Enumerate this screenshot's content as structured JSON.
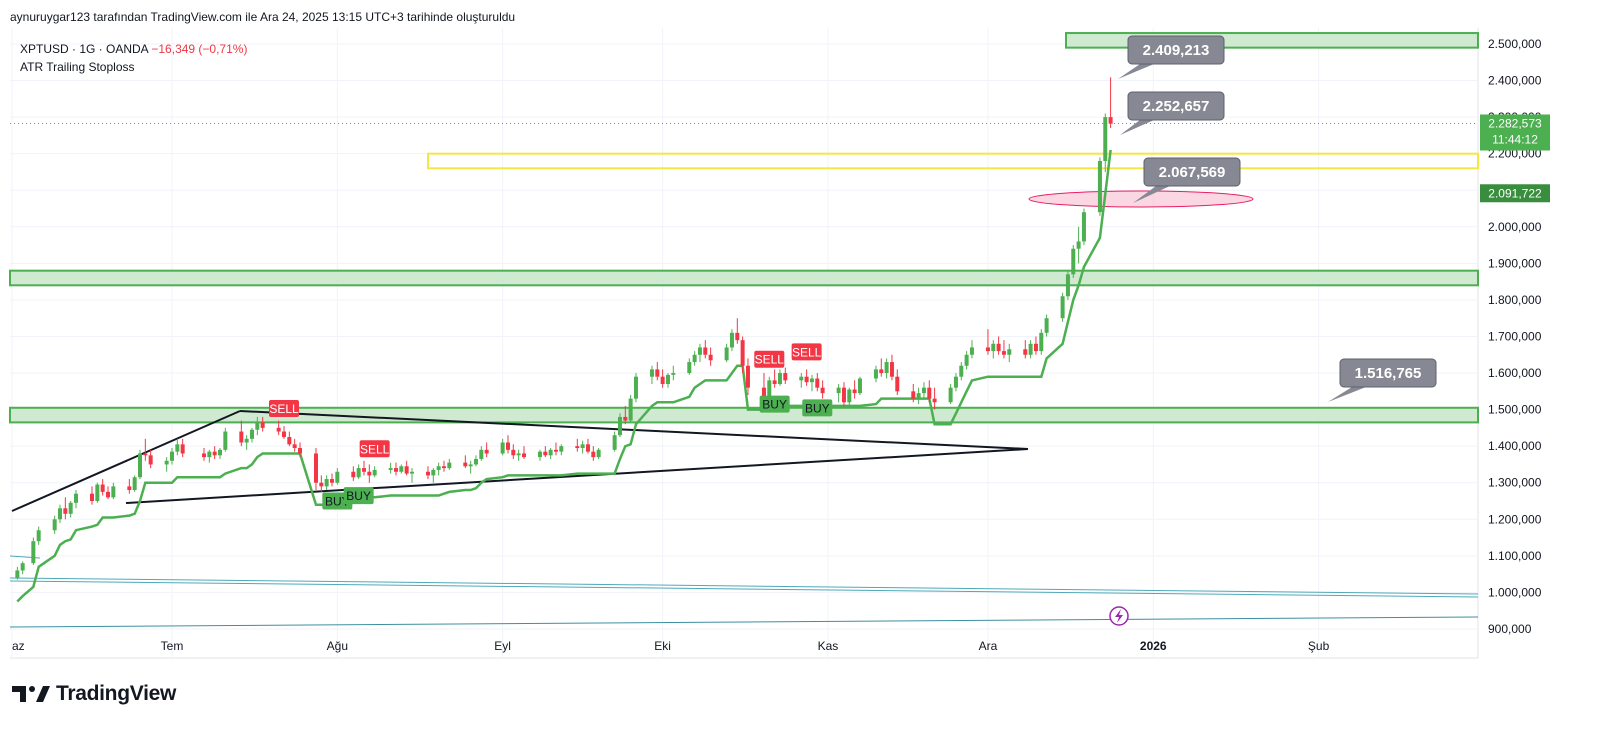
{
  "header": {
    "created_by": "aynuruygar123 tarafından TradingView.com ile Ara 24, 2025 13:15 UTC+3 tarihinde oluşturuldu"
  },
  "legend": {
    "symbol": "XPTUSD · 1G · OANDA",
    "change": "−16,349 (−0,71%)",
    "indicator": "ATR Trailing Stoploss"
  },
  "colors": {
    "up": "#4caf50",
    "down": "#f23645",
    "zone_fill": "#c8e6c9",
    "zone_stroke": "#4caf50",
    "yellow": "#f5e642",
    "callout": "#868993",
    "trend": "#131722",
    "atr": "#4caf50"
  },
  "chart_data": {
    "type": "candlestick",
    "y_ticks": [
      "2.500,000",
      "2.400,000",
      "2.300,000",
      "2.200,000",
      "2.100,000",
      "2.000,000",
      "1.900,000",
      "1.800,000",
      "1.700,000",
      "1.600,000",
      "1.500,000",
      "1.400,000",
      "1.300,000",
      "1.200,000",
      "1.100,000",
      "1.000,000",
      "900,000"
    ],
    "y_tick_values": [
      2500,
      2400,
      2300,
      2200,
      2100,
      2000,
      1900,
      1800,
      1700,
      1600,
      1500,
      1400,
      1300,
      1200,
      1100,
      1000,
      900
    ],
    "x_ticks": [
      "az",
      "Tem",
      "Ağu",
      "Eyl",
      "Eki",
      "Kas",
      "Ara",
      "2026",
      "Şub"
    ],
    "last_price": {
      "value": 2282.573,
      "label": "2.282,573",
      "countdown": "11:44:12"
    },
    "atr_value": {
      "value": 2091.722,
      "label": "2.091,722"
    },
    "callouts": [
      {
        "label": "2.409,213",
        "value": 2409.213
      },
      {
        "label": "2.252,657",
        "value": 2252.657
      },
      {
        "label": "2.067,569",
        "value": 2067.569
      },
      {
        "label": "1.516,765",
        "value": 1516.765
      }
    ],
    "zones": [
      {
        "low": 2490,
        "high": 2530,
        "color": "green"
      },
      {
        "low": 2160,
        "high": 2200,
        "color": "yellow"
      },
      {
        "low": 1840,
        "high": 1880,
        "color": "green"
      },
      {
        "low": 1465,
        "high": 1505,
        "color": "green"
      }
    ],
    "signals": [
      {
        "label": "SELL",
        "type": "sell",
        "date": "2025-07-22"
      },
      {
        "label": "SELL",
        "type": "sell",
        "date": "2025-08-08"
      },
      {
        "label": "BUY",
        "type": "buy",
        "date": "2025-08-01"
      },
      {
        "label": "BUY",
        "type": "buy",
        "date": "2025-08-05"
      },
      {
        "label": "SELL",
        "type": "sell",
        "date": "2025-10-21"
      },
      {
        "label": "SELL",
        "type": "sell",
        "date": "2025-10-28"
      },
      {
        "label": "BUY",
        "type": "buy",
        "date": "2025-10-22"
      },
      {
        "label": "BUY",
        "type": "buy",
        "date": "2025-10-30"
      }
    ],
    "candles": [
      [
        "2025-06-02",
        1040,
        1070,
        1035,
        1060
      ],
      [
        "2025-06-03",
        1060,
        1085,
        1050,
        1080
      ],
      [
        "2025-06-05",
        1080,
        1150,
        1075,
        1140
      ],
      [
        "2025-06-06",
        1140,
        1180,
        1130,
        1170
      ],
      [
        "2025-06-09",
        1170,
        1210,
        1160,
        1200
      ],
      [
        "2025-06-10",
        1200,
        1240,
        1190,
        1230
      ],
      [
        "2025-06-11",
        1230,
        1260,
        1200,
        1215
      ],
      [
        "2025-06-12",
        1215,
        1250,
        1205,
        1245
      ],
      [
        "2025-06-13",
        1245,
        1280,
        1230,
        1270
      ],
      [
        "2025-06-16",
        1270,
        1290,
        1240,
        1250
      ],
      [
        "2025-06-17",
        1250,
        1300,
        1245,
        1295
      ],
      [
        "2025-06-18",
        1295,
        1310,
        1265,
        1275
      ],
      [
        "2025-06-19",
        1275,
        1290,
        1255,
        1260
      ],
      [
        "2025-06-20",
        1260,
        1300,
        1255,
        1290
      ],
      [
        "2025-06-23",
        1290,
        1310,
        1270,
        1280
      ],
      [
        "2025-06-24",
        1280,
        1320,
        1275,
        1315
      ],
      [
        "2025-06-25",
        1315,
        1390,
        1310,
        1380
      ],
      [
        "2025-06-26",
        1380,
        1420,
        1360,
        1375
      ],
      [
        "2025-06-27",
        1375,
        1390,
        1340,
        1350
      ],
      [
        "2025-06-30",
        1350,
        1370,
        1330,
        1360
      ],
      [
        "2025-07-01",
        1360,
        1395,
        1350,
        1385
      ],
      [
        "2025-07-02",
        1385,
        1420,
        1375,
        1405
      ],
      [
        "2025-07-03",
        1405,
        1420,
        1370,
        1380
      ],
      [
        "2025-07-07",
        1380,
        1395,
        1360,
        1370
      ],
      [
        "2025-07-08",
        1370,
        1390,
        1355,
        1385
      ],
      [
        "2025-07-09",
        1385,
        1400,
        1365,
        1375
      ],
      [
        "2025-07-10",
        1375,
        1395,
        1365,
        1390
      ],
      [
        "2025-07-11",
        1390,
        1450,
        1385,
        1440
      ],
      [
        "2025-07-14",
        1440,
        1470,
        1400,
        1410
      ],
      [
        "2025-07-15",
        1410,
        1430,
        1390,
        1420
      ],
      [
        "2025-07-16",
        1420,
        1450,
        1410,
        1445
      ],
      [
        "2025-07-17",
        1445,
        1480,
        1430,
        1465
      ],
      [
        "2025-07-18",
        1465,
        1480,
        1440,
        1450
      ],
      [
        "2025-07-21",
        1450,
        1470,
        1430,
        1440
      ],
      [
        "2025-07-22",
        1440,
        1455,
        1420,
        1425
      ],
      [
        "2025-07-23",
        1425,
        1440,
        1400,
        1405
      ],
      [
        "2025-07-24",
        1405,
        1420,
        1385,
        1395
      ],
      [
        "2025-07-25",
        1395,
        1410,
        1370,
        1380
      ],
      [
        "2025-07-28",
        1380,
        1395,
        1280,
        1300
      ],
      [
        "2025-07-29",
        1300,
        1320,
        1275,
        1290
      ],
      [
        "2025-07-30",
        1290,
        1320,
        1280,
        1310
      ],
      [
        "2025-07-31",
        1310,
        1325,
        1290,
        1300
      ],
      [
        "2025-08-01",
        1300,
        1340,
        1295,
        1330
      ],
      [
        "2025-08-04",
        1330,
        1345,
        1305,
        1315
      ],
      [
        "2025-08-05",
        1315,
        1350,
        1310,
        1340
      ],
      [
        "2025-08-06",
        1340,
        1360,
        1320,
        1330
      ],
      [
        "2025-08-07",
        1330,
        1350,
        1300,
        1320
      ],
      [
        "2025-08-08",
        1320,
        1345,
        1315,
        1335
      ],
      [
        "2025-08-11",
        1335,
        1355,
        1325,
        1340
      ],
      [
        "2025-08-12",
        1340,
        1355,
        1320,
        1330
      ],
      [
        "2025-08-13",
        1330,
        1350,
        1325,
        1345
      ],
      [
        "2025-08-14",
        1345,
        1360,
        1320,
        1325
      ],
      [
        "2025-08-15",
        1325,
        1340,
        1300,
        1330
      ],
      [
        "2025-08-18",
        1330,
        1345,
        1310,
        1320
      ],
      [
        "2025-08-19",
        1320,
        1340,
        1300,
        1335
      ],
      [
        "2025-08-20",
        1335,
        1355,
        1320,
        1345
      ],
      [
        "2025-08-21",
        1345,
        1360,
        1330,
        1340
      ],
      [
        "2025-08-22",
        1340,
        1365,
        1335,
        1355
      ],
      [
        "2025-08-25",
        1355,
        1375,
        1340,
        1345
      ],
      [
        "2025-08-26",
        1345,
        1360,
        1325,
        1350
      ],
      [
        "2025-08-27",
        1350,
        1375,
        1345,
        1365
      ],
      [
        "2025-08-28",
        1365,
        1400,
        1360,
        1390
      ],
      [
        "2025-08-29",
        1390,
        1410,
        1370,
        1380
      ],
      [
        "2025-09-01",
        1380,
        1420,
        1375,
        1410
      ],
      [
        "2025-09-02",
        1410,
        1430,
        1380,
        1390
      ],
      [
        "2025-09-03",
        1390,
        1405,
        1365,
        1375
      ],
      [
        "2025-09-04",
        1375,
        1390,
        1360,
        1380
      ],
      [
        "2025-09-05",
        1380,
        1400,
        1365,
        1370
      ],
      [
        "2025-09-08",
        1370,
        1390,
        1360,
        1385
      ],
      [
        "2025-09-09",
        1385,
        1400,
        1370,
        1375
      ],
      [
        "2025-09-10",
        1375,
        1395,
        1365,
        1390
      ],
      [
        "2025-09-11",
        1390,
        1410,
        1375,
        1385
      ],
      [
        "2025-09-12",
        1385,
        1405,
        1375,
        1400
      ],
      [
        "2025-09-15",
        1400,
        1420,
        1385,
        1395
      ],
      [
        "2025-09-16",
        1395,
        1415,
        1380,
        1405
      ],
      [
        "2025-09-17",
        1405,
        1420,
        1380,
        1385
      ],
      [
        "2025-09-18",
        1385,
        1400,
        1360,
        1370
      ],
      [
        "2025-09-19",
        1370,
        1395,
        1365,
        1390
      ],
      [
        "2025-09-22",
        1390,
        1440,
        1385,
        1430
      ],
      [
        "2025-09-23",
        1430,
        1490,
        1425,
        1480
      ],
      [
        "2025-09-24",
        1480,
        1510,
        1460,
        1470
      ],
      [
        "2025-09-25",
        1470,
        1540,
        1465,
        1530
      ],
      [
        "2025-09-26",
        1530,
        1600,
        1520,
        1590
      ],
      [
        "2025-09-29",
        1590,
        1620,
        1570,
        1610
      ],
      [
        "2025-09-30",
        1610,
        1630,
        1580,
        1590
      ],
      [
        "2025-10-01",
        1590,
        1610,
        1560,
        1570
      ],
      [
        "2025-10-02",
        1570,
        1600,
        1560,
        1595
      ],
      [
        "2025-10-03",
        1595,
        1620,
        1580,
        1600
      ],
      [
        "2025-10-06",
        1600,
        1640,
        1595,
        1630
      ],
      [
        "2025-10-07",
        1630,
        1660,
        1620,
        1650
      ],
      [
        "2025-10-08",
        1650,
        1680,
        1630,
        1670
      ],
      [
        "2025-10-09",
        1670,
        1690,
        1640,
        1650
      ],
      [
        "2025-10-10",
        1650,
        1670,
        1620,
        1635
      ],
      [
        "2025-10-13",
        1635,
        1680,
        1630,
        1670
      ],
      [
        "2025-10-14",
        1670,
        1720,
        1660,
        1710
      ],
      [
        "2025-10-15",
        1710,
        1750,
        1680,
        1690
      ],
      [
        "2025-10-16",
        1690,
        1700,
        1600,
        1620
      ],
      [
        "2025-10-17",
        1620,
        1640,
        1540,
        1560
      ],
      [
        "2025-10-20",
        1560,
        1600,
        1500,
        1520
      ],
      [
        "2025-10-21",
        1520,
        1590,
        1510,
        1580
      ],
      [
        "2025-10-22",
        1580,
        1610,
        1560,
        1570
      ],
      [
        "2025-10-23",
        1570,
        1610,
        1565,
        1600
      ],
      [
        "2025-10-24",
        1600,
        1615,
        1570,
        1580
      ],
      [
        "2025-10-27",
        1580,
        1600,
        1560,
        1590
      ],
      [
        "2025-10-28",
        1590,
        1610,
        1565,
        1575
      ],
      [
        "2025-10-29",
        1575,
        1595,
        1550,
        1585
      ],
      [
        "2025-10-30",
        1585,
        1600,
        1550,
        1560
      ],
      [
        "2025-10-31",
        1560,
        1580,
        1530,
        1545
      ],
      [
        "2025-11-03",
        1545,
        1570,
        1520,
        1560
      ],
      [
        "2025-11-04",
        1560,
        1575,
        1510,
        1520
      ],
      [
        "2025-11-05",
        1520,
        1560,
        1510,
        1555
      ],
      [
        "2025-11-06",
        1555,
        1580,
        1530,
        1545
      ],
      [
        "2025-11-07",
        1545,
        1590,
        1540,
        1585
      ],
      [
        "2025-11-10",
        1585,
        1620,
        1575,
        1610
      ],
      [
        "2025-11-11",
        1610,
        1640,
        1590,
        1600
      ],
      [
        "2025-11-12",
        1600,
        1640,
        1585,
        1630
      ],
      [
        "2025-11-13",
        1630,
        1650,
        1580,
        1590
      ],
      [
        "2025-11-14",
        1590,
        1610,
        1540,
        1550
      ],
      [
        "2025-11-17",
        1550,
        1570,
        1520,
        1530
      ],
      [
        "2025-11-18",
        1530,
        1560,
        1515,
        1545
      ],
      [
        "2025-11-19",
        1545,
        1575,
        1530,
        1560
      ],
      [
        "2025-11-20",
        1560,
        1580,
        1520,
        1530
      ],
      [
        "2025-11-21",
        1530,
        1560,
        1500,
        1520
      ],
      [
        "2025-11-24",
        1520,
        1570,
        1515,
        1560
      ],
      [
        "2025-11-25",
        1560,
        1600,
        1550,
        1590
      ],
      [
        "2025-11-26",
        1590,
        1630,
        1580,
        1620
      ],
      [
        "2025-11-27",
        1620,
        1660,
        1610,
        1650
      ],
      [
        "2025-11-28",
        1650,
        1690,
        1640,
        1670
      ],
      [
        "2025-12-01",
        1670,
        1720,
        1650,
        1660
      ],
      [
        "2025-12-02",
        1660,
        1690,
        1640,
        1680
      ],
      [
        "2025-12-03",
        1680,
        1700,
        1650,
        1660
      ],
      [
        "2025-12-04",
        1660,
        1690,
        1640,
        1650
      ],
      [
        "2025-12-05",
        1650,
        1680,
        1630,
        1665
      ],
      [
        "2025-12-08",
        1665,
        1690,
        1640,
        1650
      ],
      [
        "2025-12-09",
        1650,
        1690,
        1640,
        1680
      ],
      [
        "2025-12-10",
        1680,
        1700,
        1650,
        1660
      ],
      [
        "2025-12-11",
        1660,
        1720,
        1650,
        1710
      ],
      [
        "2025-12-12",
        1710,
        1760,
        1700,
        1750
      ],
      [
        "2025-12-15",
        1750,
        1820,
        1740,
        1810
      ],
      [
        "2025-12-16",
        1810,
        1880,
        1800,
        1870
      ],
      [
        "2025-12-17",
        1870,
        1950,
        1860,
        1940
      ],
      [
        "2025-12-18",
        1940,
        2000,
        1900,
        1960
      ],
      [
        "2025-12-19",
        1960,
        2050,
        1950,
        2040
      ],
      [
        "2025-12-22",
        2040,
        2190,
        2030,
        2180
      ],
      [
        "2025-12-23",
        2180,
        2310,
        2150,
        2300
      ],
      [
        "2025-12-24",
        2300,
        2409,
        2270,
        2282
      ]
    ]
  }
}
